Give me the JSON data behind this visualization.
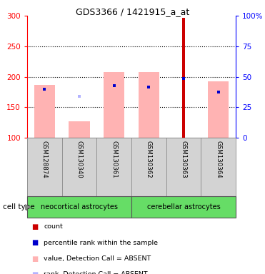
{
  "title": "GDS3366 / 1421915_a_at",
  "samples": [
    "GSM128874",
    "GSM130340",
    "GSM130361",
    "GSM130362",
    "GSM130363",
    "GSM130364"
  ],
  "group1_label": "neocortical astrocytes",
  "group2_label": "cerebellar astrocytes",
  "ylim_left": [
    100,
    300
  ],
  "ylim_right": [
    0,
    100
  ],
  "yticks_left": [
    100,
    150,
    200,
    250,
    300
  ],
  "yticks_right": [
    0,
    25,
    50,
    75,
    100
  ],
  "ytick_labels_right": [
    "0",
    "25",
    "50",
    "75",
    "100%"
  ],
  "hlines": [
    150,
    200,
    250
  ],
  "bar_bottom": 100,
  "value_absent": [
    186,
    127,
    208,
    208,
    null,
    192
  ],
  "rank_absent": [
    null,
    168,
    null,
    null,
    null,
    null
  ],
  "count_values": [
    100,
    100,
    100,
    100,
    297,
    100
  ],
  "percentile_values": [
    180,
    null,
    185,
    183,
    197,
    175
  ],
  "absent_color": "#ffb3b3",
  "rank_absent_color": "#b3b3ff",
  "count_color": "#cc0000",
  "percentile_color": "#0000cc",
  "group_fill_color": "#66dd66",
  "label_bg_color": "#d3d3d3",
  "bar_width": 0.6,
  "count_bar_width": 0.09,
  "legend_items": [
    {
      "color": "#cc0000",
      "label": "count"
    },
    {
      "color": "#0000cc",
      "label": "percentile rank within the sample"
    },
    {
      "color": "#ffb3b3",
      "label": "value, Detection Call = ABSENT"
    },
    {
      "color": "#b3b3ff",
      "label": "rank, Detection Call = ABSENT"
    }
  ]
}
